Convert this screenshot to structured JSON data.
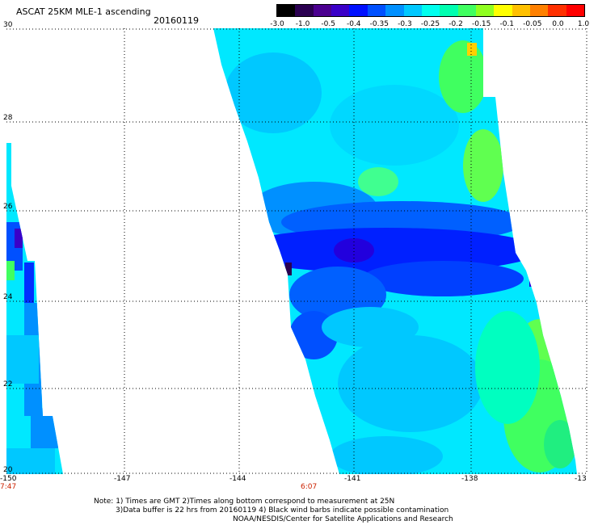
{
  "title": "ASCAT 25KM MLE-1 ascending",
  "date": "20160119",
  "colorbar": {
    "labels": [
      "-3.0",
      "-1.0",
      "-0.5",
      "-0.4",
      "-0.35",
      "-0.3",
      "-0.25",
      "-0.2",
      "-0.15",
      "-0.1",
      "-0.05",
      "0.0",
      "1.0"
    ],
    "colors": [
      "#000000",
      "#2a0050",
      "#4b0090",
      "#3a00c8",
      "#0010ff",
      "#0050ff",
      "#0090ff",
      "#00c8ff",
      "#00ffee",
      "#00ffb0",
      "#40ff60",
      "#90ff20",
      "#ffff00",
      "#ffc000",
      "#ff8000",
      "#ff3000",
      "#ff0000"
    ]
  },
  "axes": {
    "y_labels": [
      "30",
      "28",
      "26",
      "24",
      "22",
      "20"
    ],
    "x_labels": [
      "-150",
      "-147",
      "-144",
      "-141",
      "-138",
      "-13"
    ]
  },
  "times": {
    "left": "7:47",
    "center": "6:07"
  },
  "notes": {
    "line1": "Note: 1) Times are GMT 2)Times along bottom correspond to measurement at 25N",
    "line2": "3)Data buffer is 22 hrs from 20160119 4) Black wind barbs indicate possible contamination",
    "line3": "NOAA/NESDIS/Center for Satellite Applications and Research"
  }
}
